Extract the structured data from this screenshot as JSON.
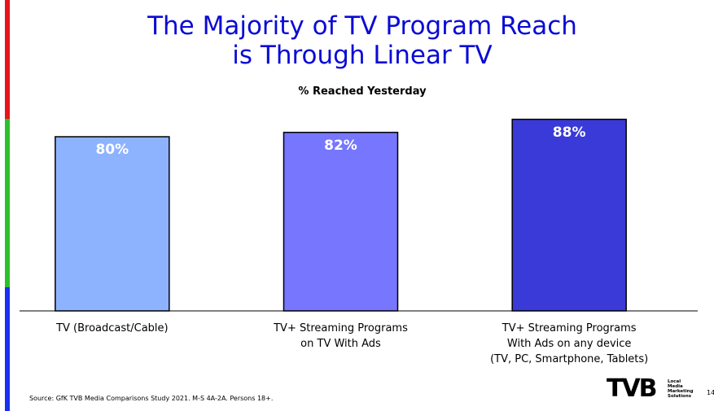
{
  "chart_data": {
    "type": "bar",
    "title": "The Majority of TV Program Reach\nis Through Linear TV",
    "subtitle": "% Reached Yesterday",
    "categories": [
      "TV (Broadcast/Cable)",
      "TV+ Streaming Programs\non TV With Ads",
      "TV+ Streaming Programs\nWith Ads on any device\n(TV, PC, Smartphone, Tablets)"
    ],
    "values": [
      80,
      82,
      88
    ],
    "value_labels": [
      "80%",
      "82%",
      "88%"
    ],
    "colors": [
      "#8db3ff",
      "#7676ff",
      "#3a3ad8"
    ],
    "ylim": [
      0,
      100
    ],
    "source": "Source: GfK TVB Media Comparisons Study 2021. M-S 4A-2A. Persons 18+.",
    "page_number": "14",
    "logo": {
      "name": "TVB",
      "tagline": "Local\nMedia\nMarketing\nSolutions"
    }
  }
}
